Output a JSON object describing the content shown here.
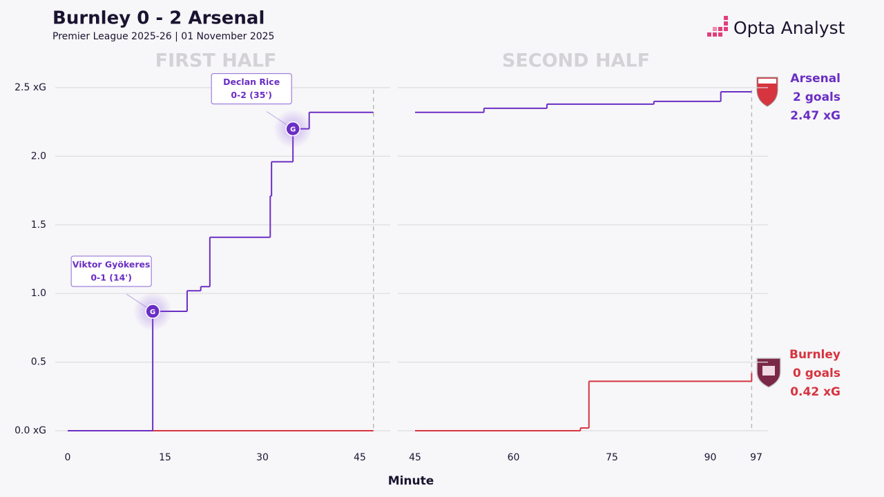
{
  "title": "Burnley 0 - 2 Arsenal",
  "subtitle": "Premier League 2025-26 | 01 November 2025",
  "brand": "Opta Analyst",
  "x_label": "Minute",
  "teams": [
    {
      "name": "Arsenal",
      "goals": "2 goals",
      "xg": "2.47 xG",
      "color": "#6a2ec4"
    },
    {
      "name": "Burnley",
      "goals": "0 goals",
      "xg": "0.42 xG",
      "color": "#d6343f"
    }
  ],
  "chart_data": [
    {
      "type": "step",
      "title": "FIRST HALF",
      "xlim": [
        0,
        50
      ],
      "xticks": [
        0,
        15,
        30,
        45
      ],
      "ylim": [
        0,
        2.5
      ],
      "yticks": [
        {
          "value": 0,
          "label": "0.0 xG"
        },
        0.5,
        {
          "value": 1,
          "label": "1.0"
        },
        1.5,
        {
          "value": 2,
          "label": "2.0"
        },
        {
          "value": 2.5,
          "label": "2.5 xG"
        }
      ],
      "grid": true,
      "series": [
        {
          "name": "Burnley",
          "color": "#d6343f",
          "x": [
            0,
            47.1
          ],
          "values": [
            0,
            0
          ]
        },
        {
          "name": "Arsenal",
          "color": "#6a2ec4",
          "x": [
            0,
            13.1,
            18.4,
            20.5,
            21.9,
            31.2,
            31.4,
            34.7,
            37.2,
            47.1
          ],
          "values": [
            0,
            0.87,
            1.02,
            1.05,
            1.41,
            1.71,
            1.96,
            2.2,
            2.32,
            2.32
          ]
        }
      ],
      "annotations": [
        {
          "x": 13.1,
          "y": 0.87,
          "marker": "G",
          "label": "Viktor Gyökeres",
          "detail": "0-1 (14')"
        },
        {
          "x": 34.7,
          "y": 2.2,
          "marker": "G",
          "label": "Declan Rice",
          "detail": "0-2 (35')"
        }
      ]
    },
    {
      "type": "step",
      "title": "SECOND HALF",
      "xlim": [
        45,
        100
      ],
      "xticks": [
        45,
        60,
        75,
        90,
        97
      ],
      "ylim": [
        0,
        2.5
      ],
      "yticks": [
        0,
        0.5,
        1,
        1.5,
        2,
        2.5
      ],
      "grid": true,
      "series": [
        {
          "name": "Burnley",
          "color": "#d6343f",
          "x": [
            45,
            70.2,
            71.5,
            96.3
          ],
          "values": [
            0,
            0.02,
            0.36,
            0.42
          ]
        },
        {
          "name": "Arsenal",
          "color": "#6a2ec4",
          "x": [
            45,
            55.5,
            65.1,
            81.4,
            91.6,
            96.3
          ],
          "values": [
            2.32,
            2.35,
            2.38,
            2.4,
            2.47,
            2.47
          ]
        }
      ]
    }
  ]
}
